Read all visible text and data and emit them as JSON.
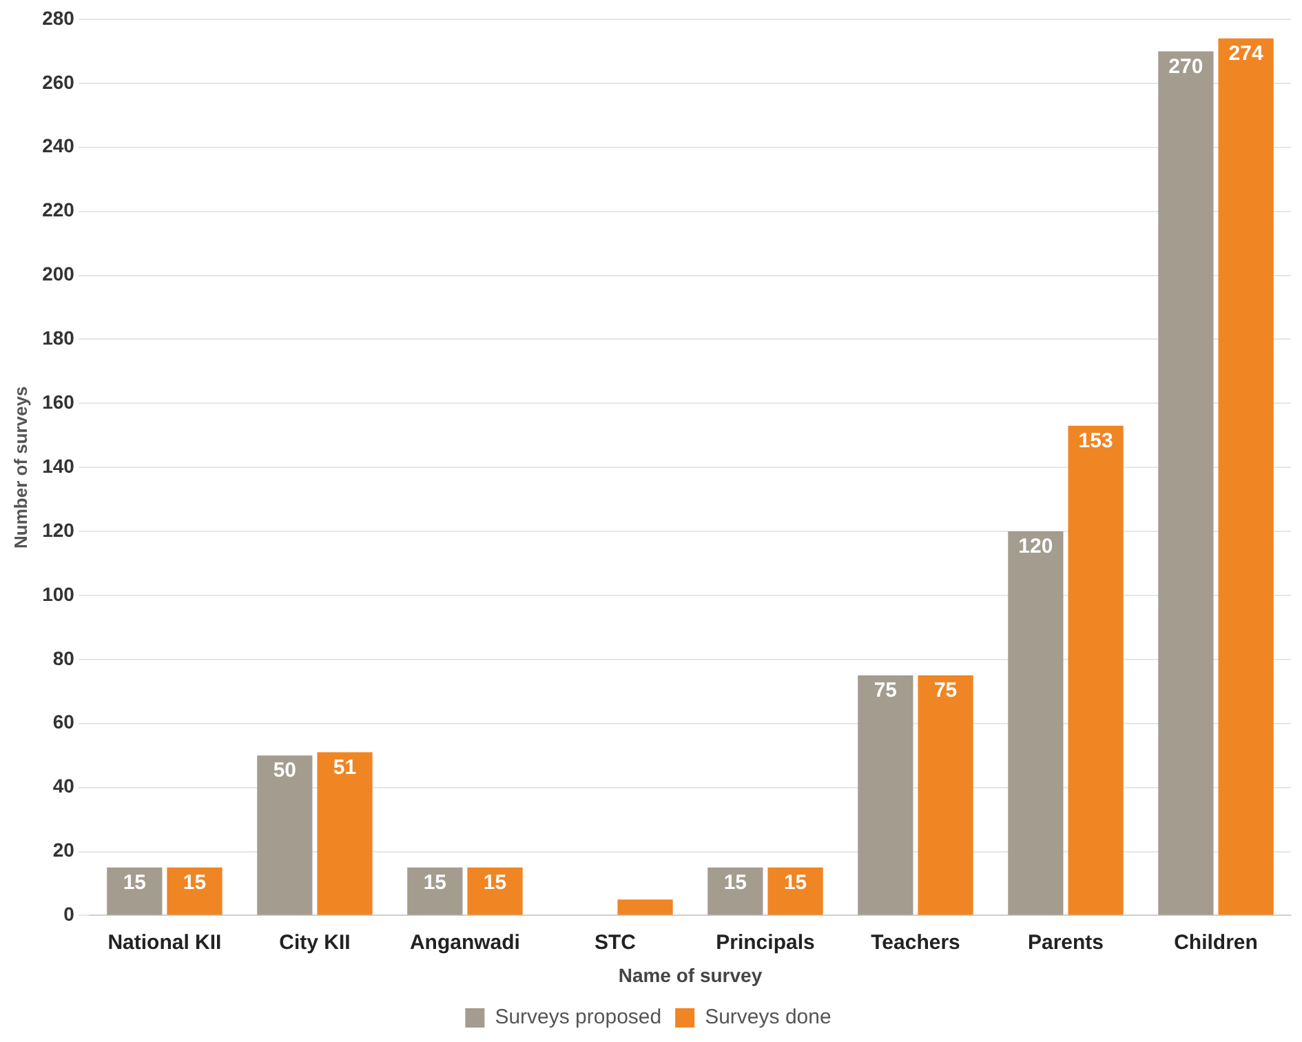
{
  "chart_data": {
    "type": "bar",
    "xlabel": "Name of survey",
    "ylabel": "Number of surveys",
    "categories": [
      "National KII",
      "City KII",
      "Anganwadi",
      "STC",
      "Principals",
      "Teachers",
      "Parents",
      "Children"
    ],
    "series": [
      {
        "name": "Surveys proposed",
        "color": "#a39c8f",
        "values": [
          15,
          50,
          15,
          null,
          15,
          75,
          120,
          270
        ],
        "value_labels": [
          "15",
          "50",
          "15",
          null,
          "15",
          "75",
          "120",
          "270"
        ]
      },
      {
        "name": "Surveys done",
        "color": "#f08524",
        "values": [
          15,
          51,
          15,
          5,
          15,
          75,
          153,
          274
        ],
        "value_labels": [
          "15",
          "51",
          "15",
          null,
          "15",
          "75",
          "153",
          "274"
        ]
      }
    ],
    "ylim": [
      0,
      280
    ],
    "yticks": [
      0,
      20,
      40,
      60,
      80,
      100,
      120,
      140,
      160,
      180,
      200,
      220,
      240,
      260,
      280
    ],
    "grid": "y",
    "legend": "bottom"
  }
}
